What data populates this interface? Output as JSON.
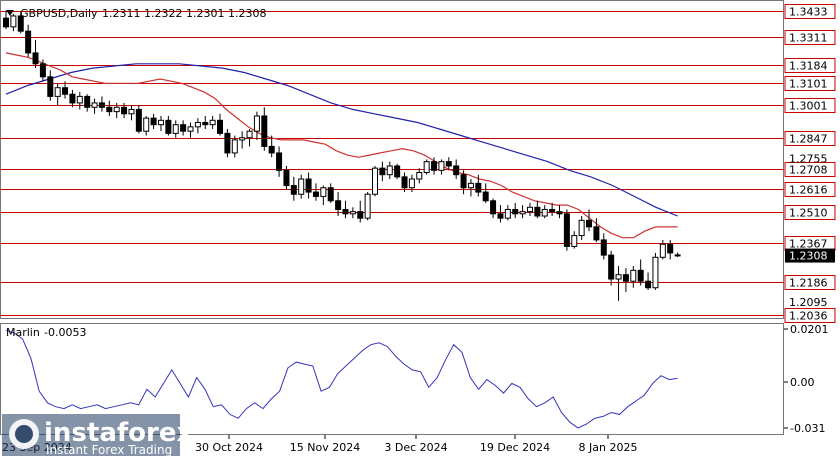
{
  "header": {
    "symbol": "GBPUSD,Daily",
    "open": "1.2311",
    "high": "1.2322",
    "low": "1.2301",
    "close": "1.2308"
  },
  "indicator": {
    "name": "Marlin",
    "value": "-0.0053",
    "axis_labels": [
      "0.0201",
      "0.00",
      "-0.031"
    ]
  },
  "watermark": {
    "brand": "instaforex",
    "tagline": "Instant Forex Trading"
  },
  "chart_data": {
    "type": "candlestick",
    "x_labels": [
      "30 Oct 2024",
      "15 Nov 2024",
      "3 Dec 2024",
      "19 Dec 2024",
      "8 Jan 2025"
    ],
    "partial_x_label": "23 Sep 2024",
    "y_range": [
      1.203,
      1.3465
    ],
    "price_levels": [
      {
        "value": 1.3433,
        "label": "1.3433"
      },
      {
        "value": 1.3311,
        "label": "1.3311"
      },
      {
        "value": 1.3184,
        "label": "1.3184"
      },
      {
        "value": 1.3101,
        "label": "1.3101"
      },
      {
        "value": 1.3001,
        "label": "1.3001"
      },
      {
        "value": 1.2847,
        "label": "1.2847"
      },
      {
        "value": 1.2708,
        "label": "1.2708"
      },
      {
        "value": 1.2616,
        "label": "1.2616"
      },
      {
        "value": 1.251,
        "label": "1.2510"
      },
      {
        "value": 1.2367,
        "label": "1.2367"
      },
      {
        "value": 1.2186,
        "label": "1.2186"
      },
      {
        "value": 1.2036,
        "label": "1.2036"
      }
    ],
    "axis_ticks": [
      "1.2095",
      "1.2755"
    ],
    "current_price": "1.2308",
    "colors": {
      "level": "#cc0000",
      "ma_fast": "#cc3333",
      "ma_slow": "#2222aa",
      "oscillator": "#3333bb"
    },
    "candles": [
      [
        1.34,
        1.3434,
        1.335,
        1.336
      ],
      [
        1.336,
        1.342,
        1.334,
        1.341
      ],
      [
        1.341,
        1.343,
        1.333,
        1.334
      ],
      [
        1.334,
        1.337,
        1.322,
        1.324
      ],
      [
        1.324,
        1.33,
        1.317,
        1.319
      ],
      [
        1.319,
        1.321,
        1.311,
        1.313
      ],
      [
        1.313,
        1.316,
        1.302,
        1.304
      ],
      [
        1.304,
        1.31,
        1.3,
        1.308
      ],
      [
        1.308,
        1.311,
        1.303,
        1.305
      ],
      [
        1.305,
        1.307,
        1.299,
        1.301
      ],
      [
        1.301,
        1.306,
        1.298,
        1.304
      ],
      [
        1.304,
        1.305,
        1.297,
        1.299
      ],
      [
        1.299,
        1.303,
        1.296,
        1.301
      ],
      [
        1.301,
        1.304,
        1.297,
        1.299
      ],
      [
        1.299,
        1.302,
        1.295,
        1.297
      ],
      [
        1.297,
        1.301,
        1.294,
        1.299
      ],
      [
        1.299,
        1.301,
        1.294,
        1.296
      ],
      [
        1.296,
        1.3,
        1.293,
        1.298
      ],
      [
        1.298,
        1.3,
        1.287,
        1.288
      ],
      [
        1.288,
        1.295,
        1.286,
        1.294
      ],
      [
        1.294,
        1.296,
        1.289,
        1.291
      ],
      [
        1.291,
        1.295,
        1.288,
        1.293
      ],
      [
        1.293,
        1.295,
        1.286,
        1.287
      ],
      [
        1.287,
        1.293,
        1.285,
        1.291
      ],
      [
        1.291,
        1.293,
        1.286,
        1.288
      ],
      [
        1.288,
        1.292,
        1.285,
        1.29
      ],
      [
        1.29,
        1.294,
        1.287,
        1.292
      ],
      [
        1.292,
        1.295,
        1.289,
        1.291
      ],
      [
        1.291,
        1.295,
        1.289,
        1.293
      ],
      [
        1.293,
        1.296,
        1.286,
        1.287
      ],
      [
        1.287,
        1.289,
        1.276,
        1.278
      ],
      [
        1.278,
        1.286,
        1.276,
        1.284
      ],
      [
        1.284,
        1.288,
        1.28,
        1.285
      ],
      [
        1.285,
        1.289,
        1.281,
        1.288
      ],
      [
        1.288,
        1.297,
        1.284,
        1.295
      ],
      [
        1.295,
        1.299,
        1.279,
        1.281
      ],
      [
        1.281,
        1.286,
        1.276,
        1.278
      ],
      [
        1.278,
        1.281,
        1.267,
        1.27
      ],
      [
        1.27,
        1.272,
        1.261,
        1.263
      ],
      [
        1.263,
        1.267,
        1.256,
        1.259
      ],
      [
        1.259,
        1.268,
        1.257,
        1.266
      ],
      [
        1.266,
        1.269,
        1.257,
        1.26
      ],
      [
        1.26,
        1.264,
        1.256,
        1.258
      ],
      [
        1.258,
        1.263,
        1.254,
        1.262
      ],
      [
        1.262,
        1.264,
        1.255,
        1.256
      ],
      [
        1.256,
        1.26,
        1.249,
        1.252
      ],
      [
        1.252,
        1.256,
        1.248,
        1.25
      ],
      [
        1.25,
        1.253,
        1.248,
        1.251
      ],
      [
        1.251,
        1.256,
        1.246,
        1.248
      ],
      [
        1.248,
        1.26,
        1.247,
        1.259
      ],
      [
        1.259,
        1.272,
        1.258,
        1.271
      ],
      [
        1.271,
        1.274,
        1.265,
        1.268
      ],
      [
        1.268,
        1.274,
        1.266,
        1.272
      ],
      [
        1.272,
        1.273,
        1.266,
        1.267
      ],
      [
        1.267,
        1.269,
        1.26,
        1.262
      ],
      [
        1.262,
        1.268,
        1.26,
        1.266
      ],
      [
        1.266,
        1.271,
        1.264,
        1.269
      ],
      [
        1.269,
        1.275,
        1.268,
        1.274
      ],
      [
        1.274,
        1.276,
        1.268,
        1.27
      ],
      [
        1.27,
        1.275,
        1.268,
        1.274
      ],
      [
        1.274,
        1.276,
        1.27,
        1.272
      ],
      [
        1.272,
        1.275,
        1.266,
        1.268
      ],
      [
        1.268,
        1.27,
        1.259,
        1.262
      ],
      [
        1.262,
        1.266,
        1.258,
        1.264
      ],
      [
        1.264,
        1.268,
        1.258,
        1.26
      ],
      [
        1.26,
        1.264,
        1.255,
        1.256
      ],
      [
        1.256,
        1.257,
        1.248,
        1.25
      ],
      [
        1.25,
        1.254,
        1.246,
        1.248
      ],
      [
        1.248,
        1.254,
        1.247,
        1.252
      ],
      [
        1.252,
        1.255,
        1.248,
        1.25
      ],
      [
        1.25,
        1.254,
        1.248,
        1.251
      ],
      [
        1.251,
        1.255,
        1.249,
        1.253
      ],
      [
        1.253,
        1.256,
        1.248,
        1.249
      ],
      [
        1.249,
        1.254,
        1.248,
        1.252
      ],
      [
        1.252,
        1.255,
        1.249,
        1.251
      ],
      [
        1.251,
        1.254,
        1.248,
        1.25
      ],
      [
        1.25,
        1.252,
        1.233,
        1.235
      ],
      [
        1.235,
        1.242,
        1.234,
        1.24
      ],
      [
        1.24,
        1.249,
        1.238,
        1.247
      ],
      [
        1.247,
        1.252,
        1.242,
        1.244
      ],
      [
        1.244,
        1.248,
        1.237,
        1.238
      ],
      [
        1.238,
        1.241,
        1.229,
        1.231
      ],
      [
        1.231,
        1.233,
        1.217,
        1.22
      ],
      [
        1.22,
        1.226,
        1.21,
        1.222
      ],
      [
        1.222,
        1.225,
        1.214,
        1.219
      ],
      [
        1.219,
        1.226,
        1.216,
        1.224
      ],
      [
        1.224,
        1.229,
        1.217,
        1.219
      ],
      [
        1.219,
        1.223,
        1.215,
        1.216
      ],
      [
        1.216,
        1.232,
        1.215,
        1.23
      ],
      [
        1.23,
        1.238,
        1.229,
        1.236
      ],
      [
        1.236,
        1.238,
        1.229,
        1.232
      ],
      [
        1.2311,
        1.2322,
        1.2301,
        1.2308
      ]
    ],
    "ma_fast": [
      1.324,
      1.323,
      1.322,
      1.32,
      1.318,
      1.316,
      1.313,
      1.312,
      1.311,
      1.31,
      1.31,
      1.31,
      1.31,
      1.311,
      1.312,
      1.311,
      1.31,
      1.308,
      1.306,
      1.303,
      1.298,
      1.294,
      1.29,
      1.287,
      1.285,
      1.284,
      1.284,
      1.284,
      1.283,
      1.282,
      1.279,
      1.277,
      1.276,
      1.277,
      1.278,
      1.279,
      1.28,
      1.279,
      1.277,
      1.274,
      1.271,
      1.269,
      1.268,
      1.266,
      1.265,
      1.263,
      1.26,
      1.258,
      1.256,
      1.255,
      1.254,
      1.254,
      1.252,
      1.248,
      1.244,
      1.241,
      1.239,
      1.239,
      1.242,
      1.244,
      1.244,
      1.244
    ],
    "ma_slow": [
      1.305,
      1.309,
      1.312,
      1.315,
      1.317,
      1.318,
      1.319,
      1.319,
      1.319,
      1.318,
      1.317,
      1.315,
      1.312,
      1.309,
      1.305,
      1.301,
      1.298,
      1.296,
      1.294,
      1.292,
      1.289,
      1.286,
      1.283,
      1.28,
      1.277,
      1.274,
      1.27,
      1.267,
      1.263,
      1.258,
      1.253,
      1.249
    ],
    "oscillator": [
      0.0195,
      0.018,
      0.015,
      0.005,
      -0.012,
      -0.018,
      -0.02,
      -0.021,
      -0.019,
      -0.021,
      -0.02,
      -0.019,
      -0.021,
      -0.02,
      -0.019,
      -0.018,
      -0.019,
      -0.011,
      -0.015,
      -0.008,
      -0.001,
      -0.008,
      -0.015,
      -0.005,
      -0.011,
      -0.02,
      -0.019,
      -0.024,
      -0.026,
      -0.021,
      -0.018,
      -0.021,
      -0.016,
      -0.012,
      0.0,
      0.003,
      0.002,
      0.001,
      -0.012,
      -0.01,
      -0.003,
      0.001,
      0.005,
      0.009,
      0.012,
      0.013,
      0.011,
      0.006,
      0.002,
      -0.001,
      -0.002,
      -0.01,
      -0.005,
      0.004,
      0.012,
      0.008,
      -0.005,
      -0.011,
      -0.006,
      -0.009,
      -0.013,
      -0.008,
      -0.01,
      -0.016,
      -0.02,
      -0.018,
      -0.015,
      -0.023,
      -0.028,
      -0.031,
      -0.029,
      -0.026,
      -0.025,
      -0.023,
      -0.024,
      -0.02,
      -0.017,
      -0.014,
      -0.008,
      -0.004,
      -0.006,
      -0.0053
    ]
  }
}
